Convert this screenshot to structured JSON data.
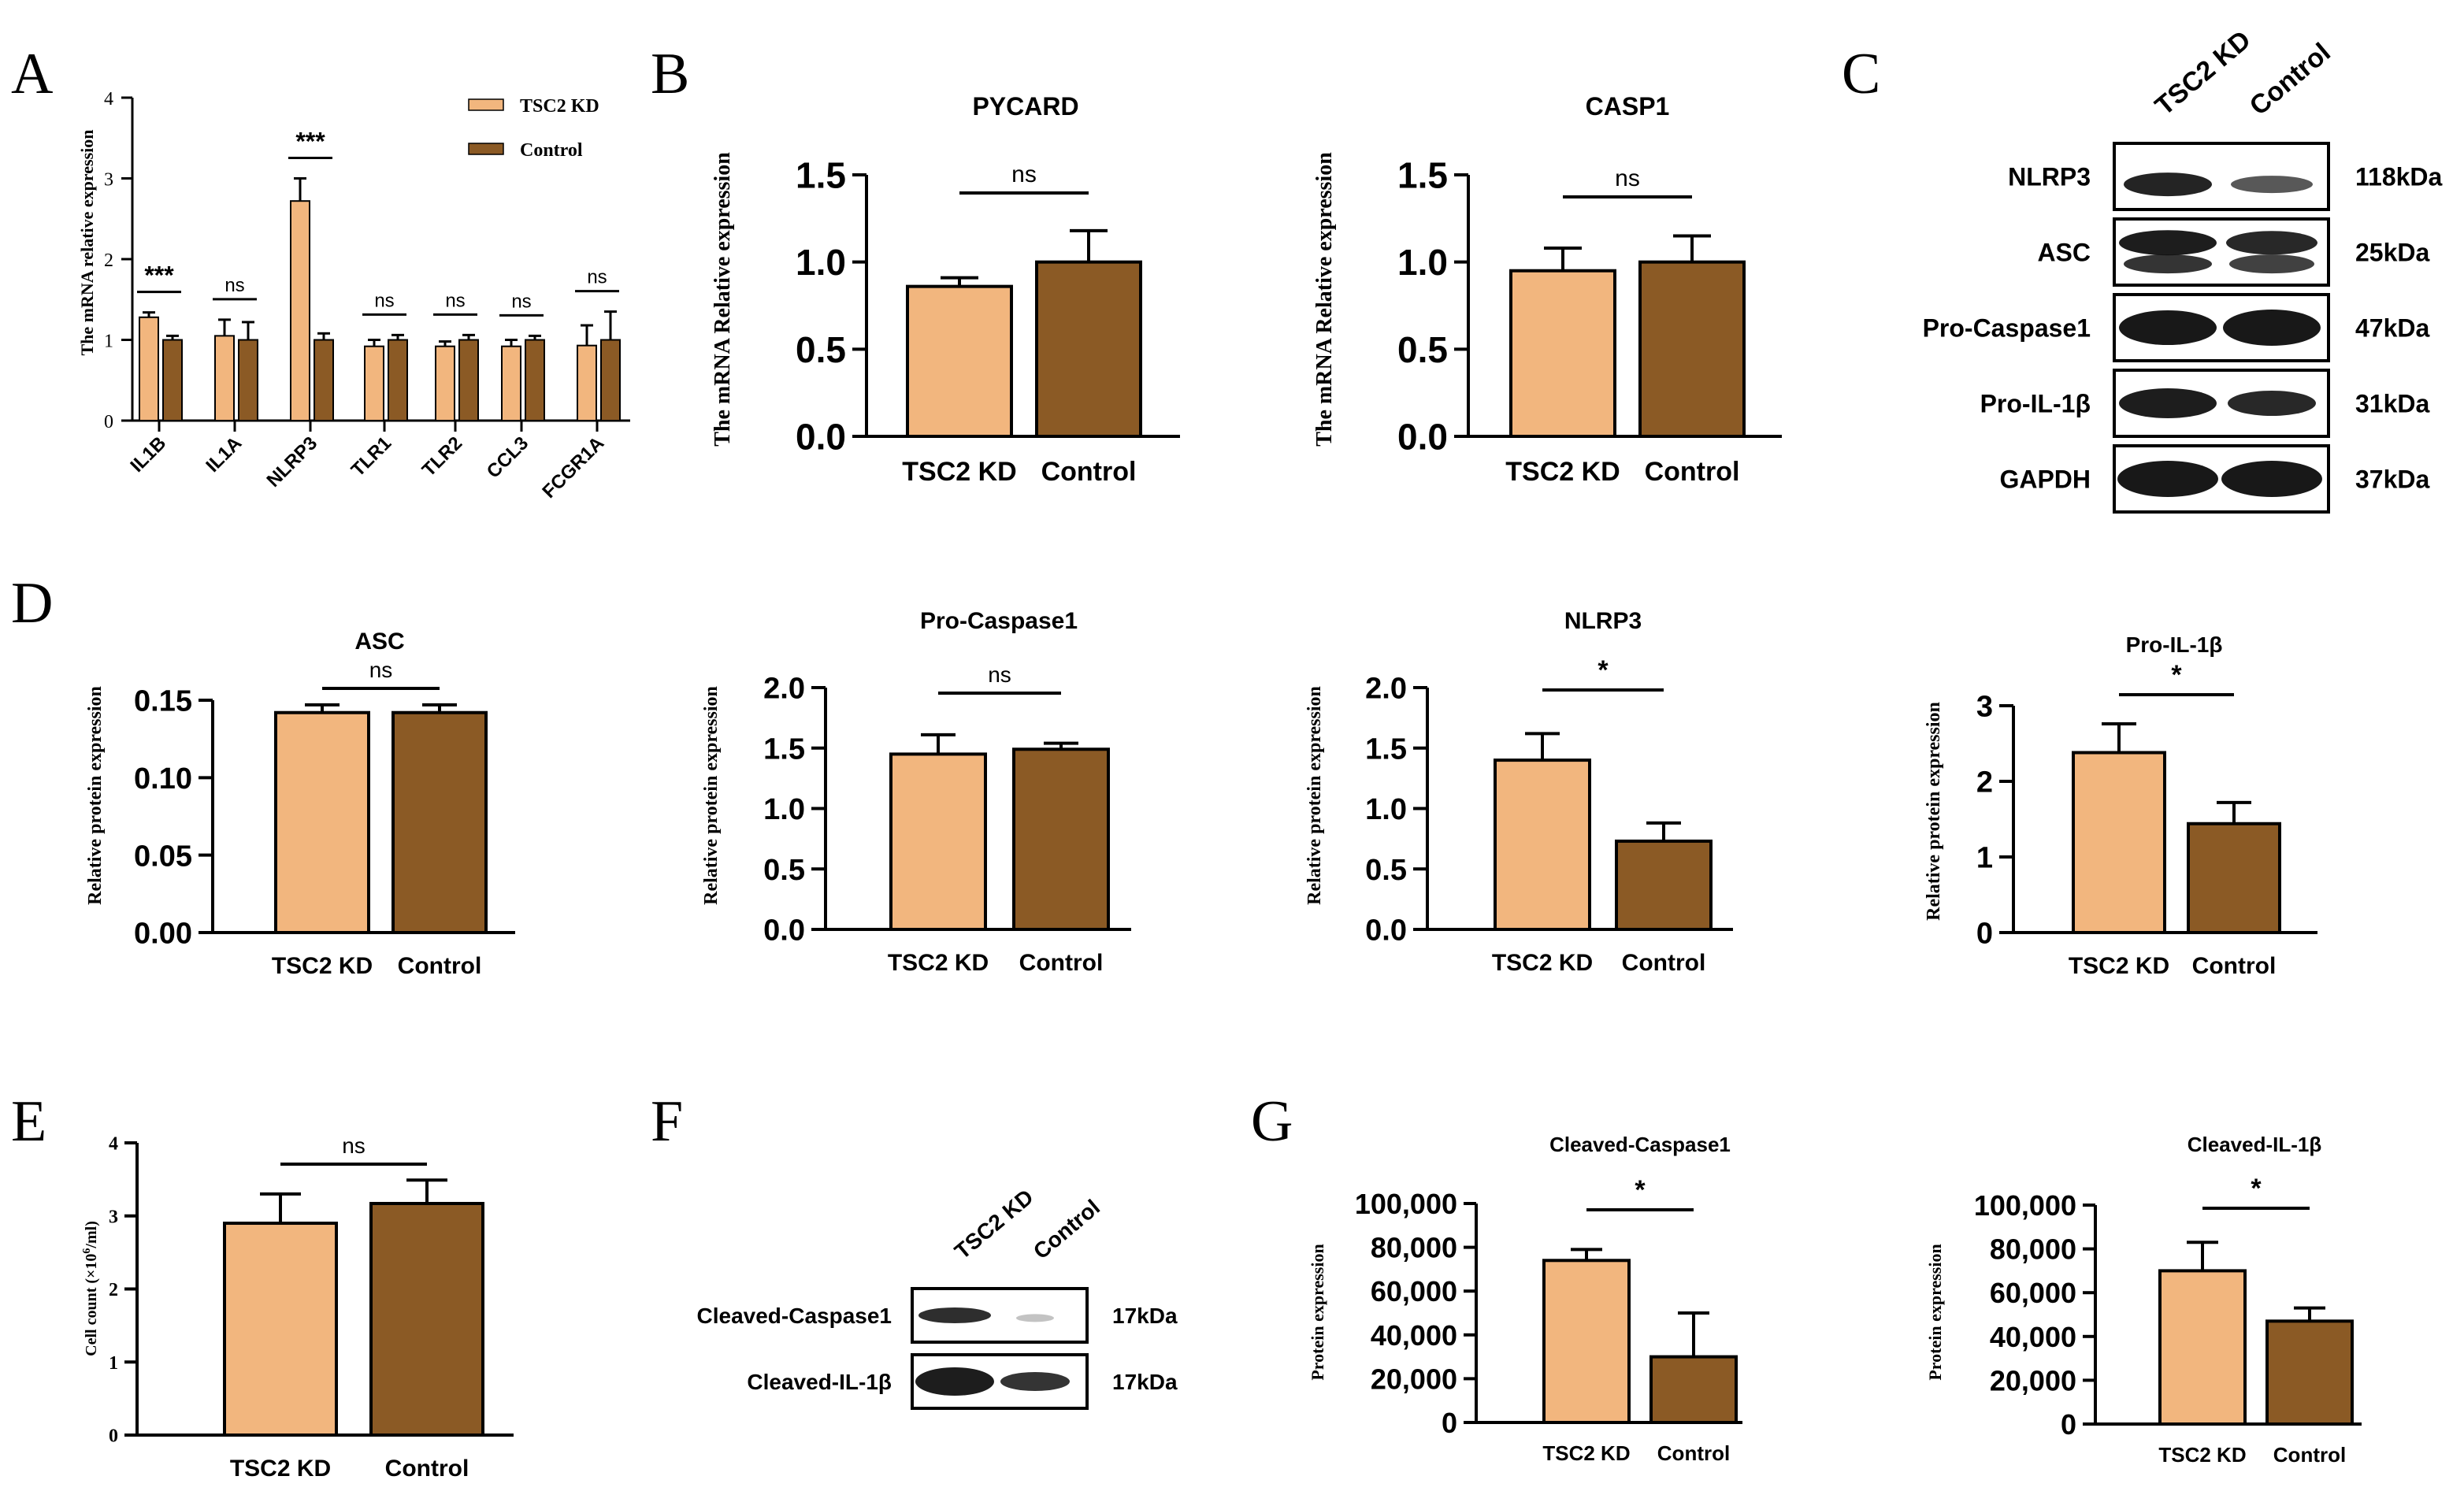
{
  "colors": {
    "tsc2kd": "#F2B67E",
    "control": "#8B5A25",
    "axis": "#000000",
    "blot_bg": "#ffffff",
    "band": "#111111"
  },
  "panel_letters": [
    "A",
    "B",
    "C",
    "D",
    "E",
    "F",
    "G"
  ],
  "chart_data": [
    {
      "id": "A",
      "type": "bar",
      "ylabel": "The mRNA relative  expression",
      "categories": [
        "IL1B",
        "IL1A",
        "NLRP3",
        "TLR1",
        "TLR2",
        "CCL3",
        "FCGR1A"
      ],
      "series": [
        {
          "name": "TSC2 KD",
          "values": [
            1.28,
            1.05,
            2.72,
            0.92,
            0.92,
            0.92,
            0.93
          ],
          "errors": [
            0.06,
            0.2,
            0.28,
            0.08,
            0.06,
            0.08,
            0.25
          ]
        },
        {
          "name": "Control",
          "values": [
            1.0,
            1.0,
            1.0,
            1.0,
            1.0,
            1.0,
            1.0
          ],
          "errors": [
            0.05,
            0.22,
            0.08,
            0.06,
            0.06,
            0.05,
            0.35
          ]
        }
      ],
      "significance": [
        "***",
        "ns",
        "***",
        "ns",
        "ns",
        "ns",
        "ns"
      ],
      "yticks": [
        "0",
        "1",
        "2",
        "3",
        "4"
      ],
      "ylim": [
        0,
        4
      ],
      "legend": [
        "TSC2 KD",
        "Control"
      ]
    },
    {
      "id": "B1",
      "type": "bar",
      "title": "PYCARD",
      "ylabel": "The mRNA Relative  expression",
      "categories": [
        "TSC2 KD",
        "Control"
      ],
      "values": [
        0.86,
        1.0
      ],
      "errors": [
        0.05,
        0.18
      ],
      "significance": "ns",
      "yticks": [
        "0.0",
        "0.5",
        "1.0",
        "1.5"
      ],
      "ylim": [
        0,
        1.5
      ]
    },
    {
      "id": "B2",
      "type": "bar",
      "title": "CASP1",
      "ylabel": "The mRNA Relative  expression",
      "categories": [
        "TSC2 KD",
        "Control"
      ],
      "values": [
        0.95,
        1.0
      ],
      "errors": [
        0.13,
        0.15
      ],
      "significance": "ns",
      "yticks": [
        "0.0",
        "0.5",
        "1.0",
        "1.5"
      ],
      "ylim": [
        0,
        1.5
      ]
    },
    {
      "id": "D1",
      "type": "bar",
      "title": "ASC",
      "ylabel": "Relative protein expression",
      "categories": [
        "TSC2 KD",
        "Control"
      ],
      "values": [
        0.142,
        0.142
      ],
      "errors": [
        0.005,
        0.005
      ],
      "significance": "ns",
      "yticks": [
        "0.00",
        "0.05",
        "0.10",
        "0.15"
      ],
      "ylim": [
        0,
        0.15
      ]
    },
    {
      "id": "D2",
      "type": "bar",
      "title": "Pro-Caspase1",
      "ylabel": "Relative protein expression",
      "categories": [
        "TSC2 KD",
        "Control"
      ],
      "values": [
        1.45,
        1.49
      ],
      "errors": [
        0.16,
        0.05
      ],
      "significance": "ns",
      "yticks": [
        "0.0",
        "0.5",
        "1.0",
        "1.5",
        "2.0"
      ],
      "ylim": [
        0,
        2.0
      ]
    },
    {
      "id": "D3",
      "type": "bar",
      "title": "NLRP3",
      "ylabel": "Relative protein expression",
      "categories": [
        "TSC2 KD",
        "Control"
      ],
      "values": [
        1.4,
        0.73
      ],
      "errors": [
        0.22,
        0.15
      ],
      "significance": "*",
      "yticks": [
        "0.0",
        "0.5",
        "1.0",
        "1.5",
        "2.0"
      ],
      "ylim": [
        0,
        2.0
      ]
    },
    {
      "id": "D4",
      "type": "bar",
      "title": "Pro-IL-1β",
      "ylabel": "Relative protein expression",
      "categories": [
        "TSC2 KD",
        "Control"
      ],
      "values": [
        2.38,
        1.44
      ],
      "errors": [
        0.38,
        0.28
      ],
      "significance": "*",
      "yticks": [
        "0",
        "1",
        "2",
        "3"
      ],
      "ylim": [
        0,
        3
      ]
    },
    {
      "id": "E",
      "type": "bar",
      "ylabel": "Cell count (×10",
      "ylabel_sup": "6",
      "ylabel_end": "/ml)",
      "categories": [
        "TSC2 KD",
        "Control"
      ],
      "values": [
        2.9,
        3.17
      ],
      "errors": [
        0.4,
        0.32
      ],
      "significance": "ns",
      "yticks": [
        "0",
        "1",
        "2",
        "3",
        "4"
      ],
      "ylim": [
        0,
        4
      ]
    },
    {
      "id": "G1",
      "type": "bar",
      "title": "Cleaved-Caspase1",
      "ylabel": "Protein expression",
      "categories": [
        "TSC2 KD",
        "Control"
      ],
      "values": [
        74000,
        30000
      ],
      "errors": [
        5000,
        20000
      ],
      "significance": "*",
      "yticks": [
        "0",
        "20,000",
        "40,000",
        "60,000",
        "80,000",
        "100,000"
      ],
      "ylim": [
        0,
        100000
      ]
    },
    {
      "id": "G2",
      "type": "bar",
      "title": "Cleaved-IL-1β",
      "ylabel": "Protein expression",
      "categories": [
        "TSC2 KD",
        "Control"
      ],
      "values": [
        70000,
        47000
      ],
      "errors": [
        13000,
        6000
      ],
      "significance": "*",
      "yticks": [
        "0",
        "20,000",
        "40,000",
        "60,000",
        "80,000",
        "100,000"
      ],
      "ylim": [
        0,
        100000
      ]
    }
  ],
  "blots": {
    "C": {
      "lanes": [
        "TSC2 KD",
        "Control"
      ],
      "rows": [
        {
          "protein": "NLRP3",
          "size": "118kDa"
        },
        {
          "protein": "ASC",
          "size": "25kDa"
        },
        {
          "protein": "Pro-Caspase1",
          "size": "47kDa"
        },
        {
          "protein": "Pro-IL-1β",
          "size": "31kDa"
        },
        {
          "protein": "GAPDH",
          "size": "37kDa"
        }
      ]
    },
    "F": {
      "lanes": [
        "TSC2 KD",
        "Control"
      ],
      "rows": [
        {
          "protein": "Cleaved-Caspase1",
          "size": "17kDa"
        },
        {
          "protein": "Cleaved-IL-1β",
          "size": "17kDa"
        }
      ]
    }
  }
}
